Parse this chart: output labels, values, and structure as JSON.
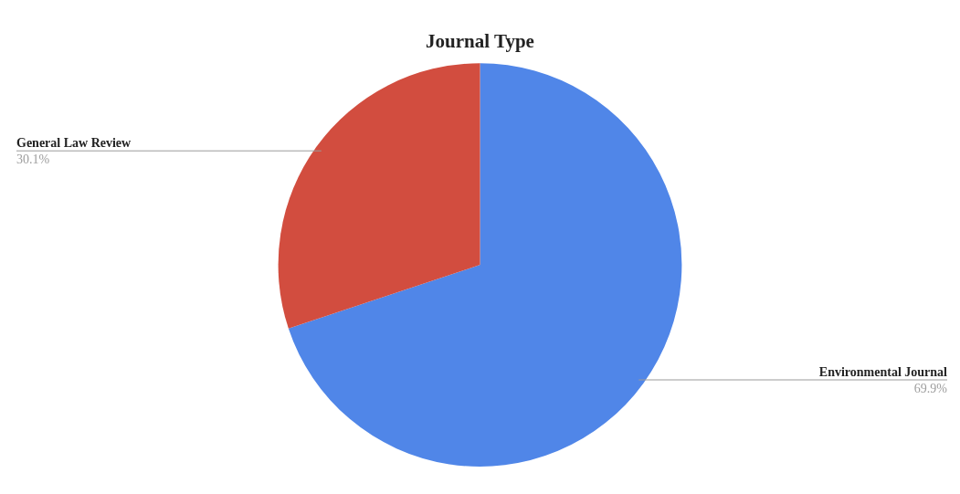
{
  "chart_data": {
    "type": "pie",
    "title": "Journal Type",
    "categories": [
      "Environmental Journal",
      "General Law Review"
    ],
    "values": [
      69.9,
      30.1
    ],
    "value_labels": [
      "69.9%",
      "30.1%"
    ],
    "colors": [
      "#5086e8",
      "#d24d3f"
    ]
  }
}
